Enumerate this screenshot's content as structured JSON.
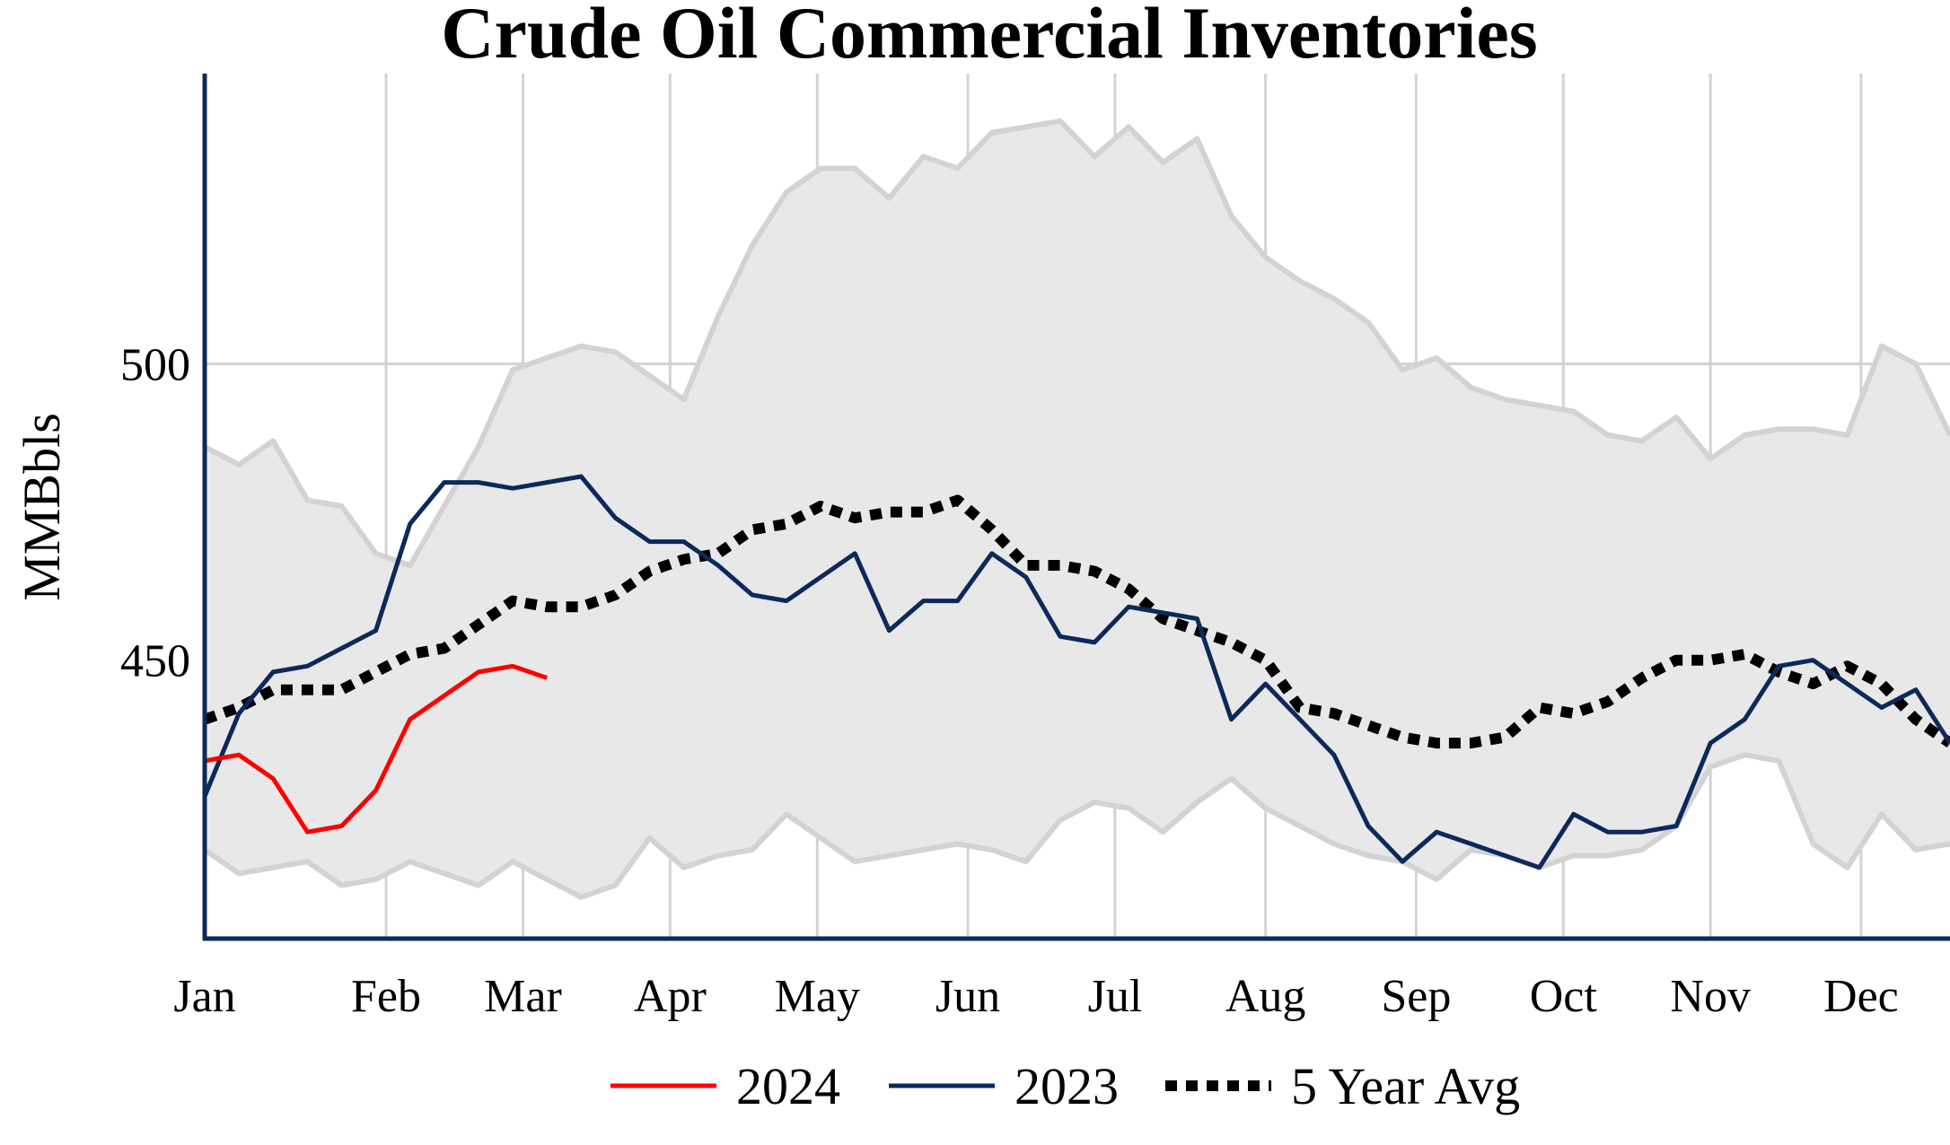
{
  "chart_data": {
    "type": "line",
    "title": "Crude Oil Commercial Inventories",
    "ylabel": "MMBbls",
    "xlabel": "",
    "x_range_weeks": [
      1,
      52
    ],
    "ylim": [
      403,
      549
    ],
    "y_ticks": [
      450,
      500
    ],
    "month_ticks": [
      {
        "label": "Jan",
        "week": 1
      },
      {
        "label": "Feb",
        "week": 6.3
      },
      {
        "label": "Mar",
        "week": 10.3
      },
      {
        "label": "Apr",
        "week": 14.6
      },
      {
        "label": "May",
        "week": 18.9
      },
      {
        "label": "Jun",
        "week": 23.3
      },
      {
        "label": "Jul",
        "week": 27.6
      },
      {
        "label": "Aug",
        "week": 32
      },
      {
        "label": "Sep",
        "week": 36.4
      },
      {
        "label": "Oct",
        "week": 40.7
      },
      {
        "label": "Nov",
        "week": 45
      },
      {
        "label": "Dec",
        "week": 49.4
      }
    ],
    "grid": true,
    "legend_position": "bottom-center",
    "range_band": {
      "x": [
        1,
        2,
        3,
        4,
        5,
        6,
        7,
        8,
        9,
        10,
        11,
        12,
        13,
        14,
        15,
        16,
        17,
        18,
        19,
        20,
        21,
        22,
        23,
        24,
        25,
        26,
        27,
        28,
        29,
        30,
        31,
        32,
        33,
        34,
        35,
        36,
        37,
        38,
        39,
        40,
        41,
        42,
        43,
        44,
        45,
        46,
        47,
        48,
        49,
        50,
        51,
        52
      ],
      "upper": [
        486,
        483,
        487,
        477,
        476,
        468,
        466,
        476,
        486,
        499,
        501,
        503,
        502,
        498,
        494,
        508,
        520,
        529,
        533,
        533,
        528,
        535,
        533,
        539,
        540,
        541,
        535,
        540,
        534,
        538,
        525,
        518,
        514,
        511,
        507,
        499,
        501,
        496,
        494,
        493,
        492,
        488,
        487,
        491,
        484,
        488,
        489,
        489,
        488,
        503,
        500,
        488
      ],
      "lower": [
        418,
        414,
        415,
        416,
        412,
        413,
        416,
        414,
        412,
        416,
        413,
        410,
        412,
        420,
        415,
        417,
        418,
        424,
        420,
        416,
        417,
        418,
        419,
        418,
        416,
        423,
        426,
        425,
        421,
        426,
        430,
        425,
        422,
        419,
        417,
        416,
        413,
        418,
        417,
        415,
        417,
        417,
        418,
        422,
        432,
        434,
        433,
        419,
        415,
        424,
        418,
        419
      ]
    },
    "series": [
      {
        "name": "2024",
        "color": "#ff0000",
        "x": [
          1,
          2,
          3,
          4,
          5,
          6,
          7,
          8,
          9,
          10,
          11
        ],
        "values": [
          433,
          434,
          430,
          421,
          422,
          428,
          440,
          444,
          448,
          449,
          447
        ]
      },
      {
        "name": "2023",
        "color": "#0b2a5a",
        "x": [
          1,
          2,
          3,
          4,
          5,
          6,
          7,
          8,
          9,
          10,
          11,
          12,
          13,
          14,
          15,
          16,
          17,
          18,
          19,
          20,
          21,
          22,
          23,
          24,
          25,
          26,
          27,
          28,
          29,
          30,
          31,
          32,
          33,
          34,
          35,
          36,
          37,
          38,
          39,
          40,
          41,
          42,
          43,
          44,
          45,
          46,
          47,
          48,
          49,
          50,
          51,
          52
        ],
        "values": [
          427,
          441,
          448,
          449,
          452,
          455,
          473,
          480,
          480,
          479,
          480,
          481,
          474,
          470,
          470,
          466,
          461,
          460,
          464,
          468,
          455,
          460,
          460,
          468,
          464,
          454,
          453,
          459,
          458,
          457,
          440,
          446,
          440,
          434,
          422,
          416,
          421,
          419,
          417,
          415,
          424,
          421,
          421,
          422,
          436,
          440,
          449,
          450,
          446,
          442,
          445,
          436
        ]
      },
      {
        "name": "5 Year Avg",
        "color": "#000000",
        "dashed": true,
        "x": [
          1,
          2,
          3,
          4,
          5,
          6,
          7,
          8,
          9,
          10,
          11,
          12,
          13,
          14,
          15,
          16,
          17,
          18,
          19,
          20,
          21,
          22,
          23,
          24,
          25,
          26,
          27,
          28,
          29,
          30,
          31,
          32,
          33,
          34,
          35,
          36,
          37,
          38,
          39,
          40,
          41,
          42,
          43,
          44,
          45,
          46,
          47,
          48,
          49,
          50,
          51,
          52
        ],
        "values": [
          440,
          442,
          445,
          445,
          445,
          448,
          451,
          452,
          456,
          460,
          459,
          459,
          461,
          465,
          467,
          468,
          472,
          473,
          476,
          474,
          475,
          475,
          477,
          472,
          466,
          466,
          465,
          462,
          457,
          455,
          453,
          450,
          442,
          441,
          439,
          437,
          436,
          436,
          437,
          442,
          441,
          443,
          447,
          450,
          450,
          451,
          448,
          446,
          449,
          446,
          440,
          436
        ]
      }
    ]
  }
}
